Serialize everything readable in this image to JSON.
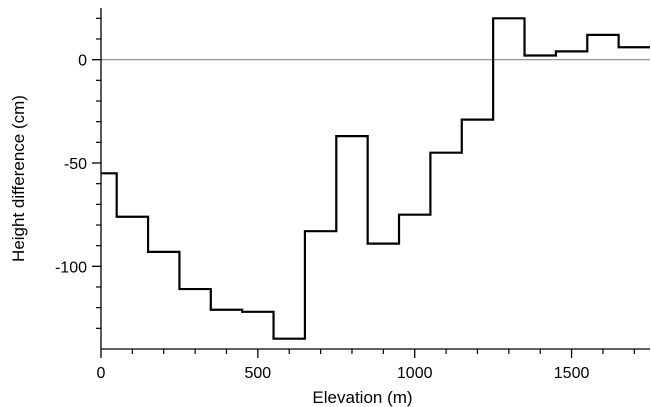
{
  "chart_data": {
    "type": "line",
    "step": true,
    "xlabel": "Elevation (m)",
    "ylabel": "Height difference (cm)",
    "xlim": [
      0,
      1750
    ],
    "ylim": [
      -140,
      25
    ],
    "grid": false,
    "zero_line": true,
    "x_major_ticks": [
      0,
      500,
      1000,
      1500
    ],
    "x_minor_ticks": [
      100,
      200,
      300,
      400,
      600,
      700,
      800,
      900,
      1100,
      1200,
      1300,
      1400,
      1600,
      1700
    ],
    "y_major_ticks": [
      0,
      -50,
      -100
    ],
    "y_minor_ticks": [
      20,
      10,
      -10,
      -20,
      -30,
      -40,
      -60,
      -70,
      -80,
      -90,
      -110,
      -120,
      -130
    ],
    "x_tick_labels": [
      "0",
      "500",
      "1000",
      "1500"
    ],
    "y_tick_labels": [
      "0",
      "-50",
      "-100"
    ],
    "series": [
      {
        "steps": [
          {
            "x0": 0,
            "x1": 50,
            "y": -55
          },
          {
            "x0": 50,
            "x1": 150,
            "y": -76
          },
          {
            "x0": 150,
            "x1": 250,
            "y": -93
          },
          {
            "x0": 250,
            "x1": 350,
            "y": -111
          },
          {
            "x0": 350,
            "x1": 450,
            "y": -121
          },
          {
            "x0": 450,
            "x1": 550,
            "y": -122
          },
          {
            "x0": 550,
            "x1": 650,
            "y": -135
          },
          {
            "x0": 650,
            "x1": 750,
            "y": -83
          },
          {
            "x0": 750,
            "x1": 850,
            "y": -37
          },
          {
            "x0": 850,
            "x1": 950,
            "y": -89
          },
          {
            "x0": 950,
            "x1": 1050,
            "y": -75
          },
          {
            "x0": 1050,
            "x1": 1150,
            "y": -45
          },
          {
            "x0": 1150,
            "x1": 1250,
            "y": -29
          },
          {
            "x0": 1250,
            "x1": 1350,
            "y": 20
          },
          {
            "x0": 1350,
            "x1": 1450,
            "y": 2
          },
          {
            "x0": 1450,
            "x1": 1550,
            "y": 4
          },
          {
            "x0": 1550,
            "x1": 1650,
            "y": 12
          },
          {
            "x0": 1650,
            "x1": 1750,
            "y": 6
          }
        ]
      }
    ]
  }
}
